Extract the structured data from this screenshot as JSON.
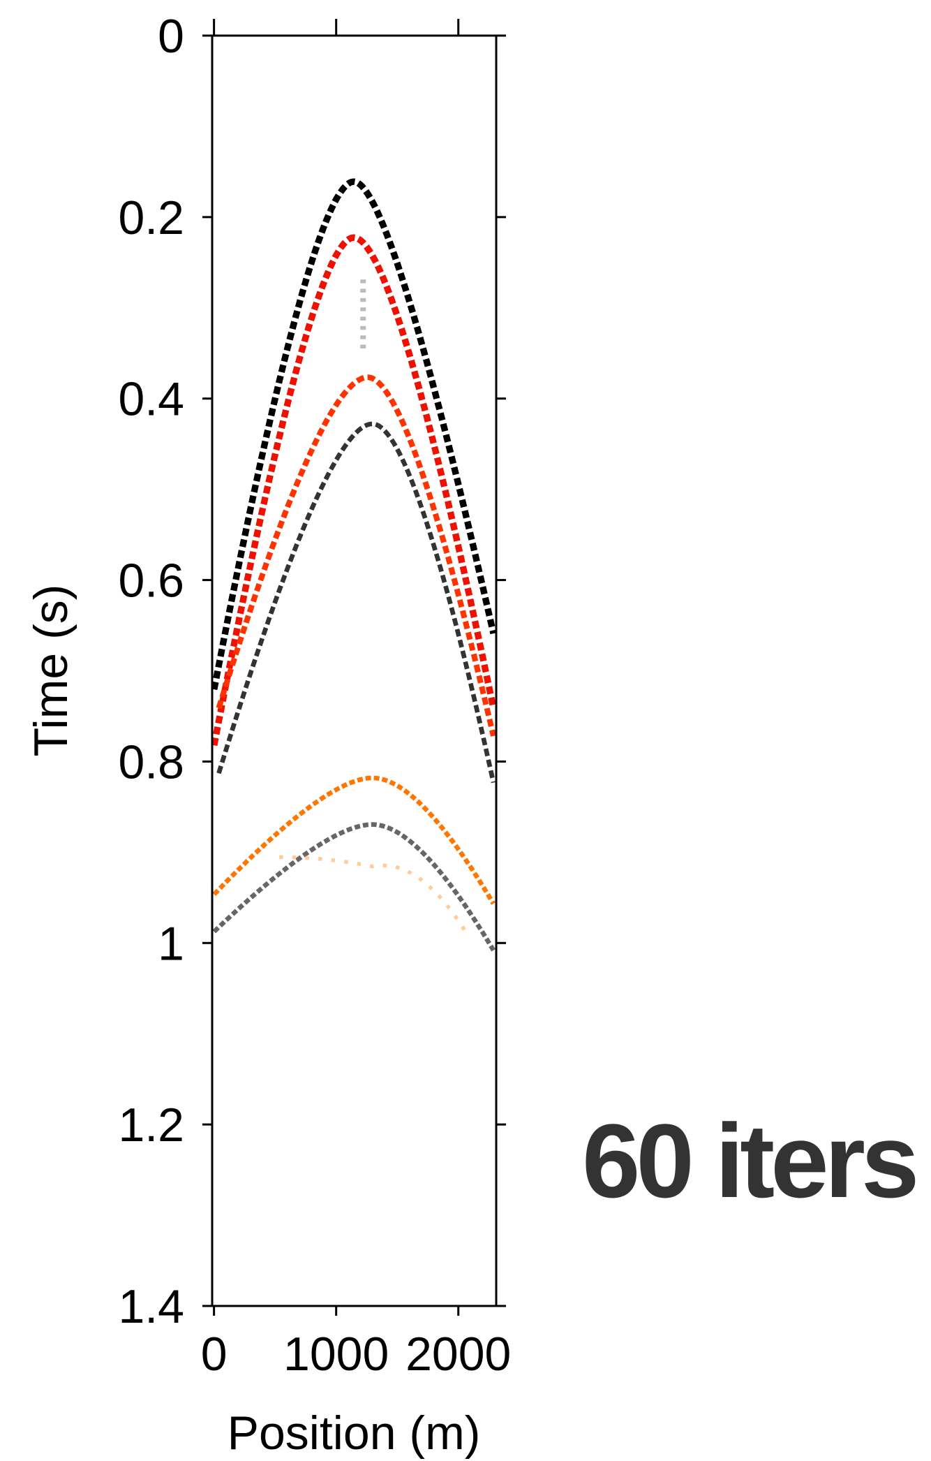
{
  "chart_data": {
    "type": "image",
    "xlabel": "Position (m)",
    "ylabel": "Time (s)",
    "xlim": [
      -15,
      2310
    ],
    "ylim": [
      0,
      1.4
    ],
    "y_inverted": true,
    "xticks": [
      0,
      1000,
      2000
    ],
    "yticks": [
      0,
      0.2,
      0.4,
      0.6,
      0.8,
      1,
      1.2,
      1.4
    ],
    "annotation": "60 iters"
  }
}
